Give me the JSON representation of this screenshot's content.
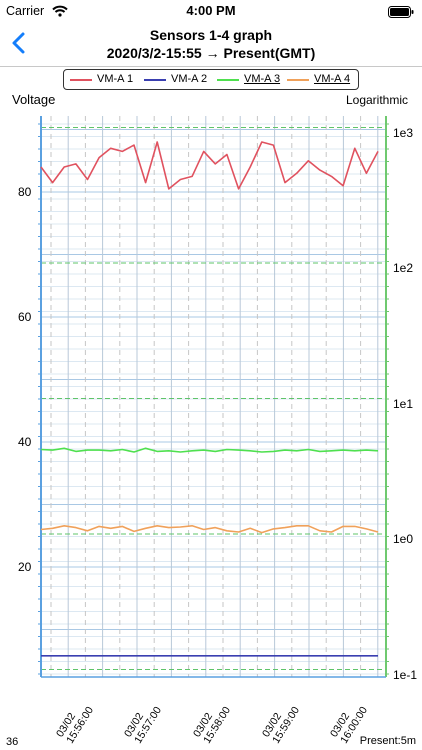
{
  "status_bar": {
    "carrier": "Carrier",
    "time": "4:00 PM"
  },
  "nav": {
    "title_line1": "Sensors 1-4 graph",
    "title_line2": "2020/3/2-15:55 → Present(GMT)"
  },
  "legend": [
    {
      "label": "VM-A 1",
      "color": "#e0525f",
      "underlined": false
    },
    {
      "label": "VM-A 2",
      "color": "#3a3fb0",
      "underlined": false
    },
    {
      "label": "VM-A 3",
      "color": "#4fe04f",
      "underlined": true
    },
    {
      "label": "VM-A 4",
      "color": "#f0a15a",
      "underlined": true
    }
  ],
  "axes": {
    "left_label": "Voltage",
    "right_label": "Logarithmic"
  },
  "footer": {
    "left": "36",
    "right": "Present:5m"
  },
  "chart_data": {
    "type": "line",
    "y_left_ticks": [
      "80",
      "60",
      "40",
      "20"
    ],
    "y_left_ticks_values": [
      80,
      60,
      40,
      20
    ],
    "y_right_ticks": [
      "1e3",
      "1e2",
      "1e1",
      "1e0",
      "1e-1"
    ],
    "y_right_ticks_exponents": [
      3,
      2,
      1,
      0,
      -1
    ],
    "x_tick_labels": [
      {
        "date": "03/02",
        "time": "15:56:00"
      },
      {
        "date": "03/02",
        "time": "15:57:00"
      },
      {
        "date": "03/02",
        "time": "15:58:00"
      },
      {
        "date": "03/02",
        "time": "15:59:00"
      },
      {
        "date": "03/02",
        "time": "16:00:00"
      }
    ],
    "series": [
      {
        "name": "VM-A 1",
        "color": "#e0525f",
        "values": [
          84,
          81.5,
          84,
          84.5,
          82,
          85.5,
          87,
          86.5,
          87.5,
          81.5,
          88,
          80.5,
          82,
          82.5,
          86.5,
          84.5,
          86,
          80.5,
          84,
          88,
          87.5,
          81.5,
          83,
          85,
          83.5,
          82.5,
          81,
          87,
          83,
          86.5
        ]
      },
      {
        "name": "VM-A 2",
        "color": "#3a3fb0",
        "values": [
          5.8,
          5.8,
          5.8,
          5.8,
          5.8,
          5.8,
          5.8,
          5.8,
          5.8,
          5.8,
          5.8,
          5.8,
          5.8,
          5.8,
          5.8,
          5.8,
          5.8,
          5.8,
          5.8,
          5.8,
          5.8,
          5.8,
          5.8,
          5.8,
          5.8,
          5.8,
          5.8,
          5.8,
          5.8,
          5.8
        ]
      },
      {
        "name": "VM-A 3",
        "color": "#4fe04f",
        "values": [
          38.8,
          38.7,
          39.0,
          38.5,
          38.7,
          38.7,
          38.6,
          38.8,
          38.4,
          39.0,
          38.5,
          38.6,
          38.4,
          38.6,
          38.7,
          38.5,
          38.8,
          38.7,
          38.6,
          38.4,
          38.5,
          38.7,
          38.6,
          38.8,
          38.5,
          38.6,
          38.7,
          38.6,
          38.7,
          38.6
        ]
      },
      {
        "name": "VM-A 4",
        "color": "#f0a15a",
        "values": [
          26.0,
          26.2,
          26.6,
          26.3,
          25.8,
          26.5,
          26.2,
          26.5,
          25.7,
          26.2,
          26.6,
          26.3,
          26.4,
          26.6,
          26.0,
          26.3,
          25.8,
          25.6,
          26.2,
          25.5,
          26.1,
          26.3,
          26.6,
          26.6,
          25.8,
          25.6,
          26.5,
          26.5,
          26.1,
          25.6
        ]
      }
    ]
  }
}
